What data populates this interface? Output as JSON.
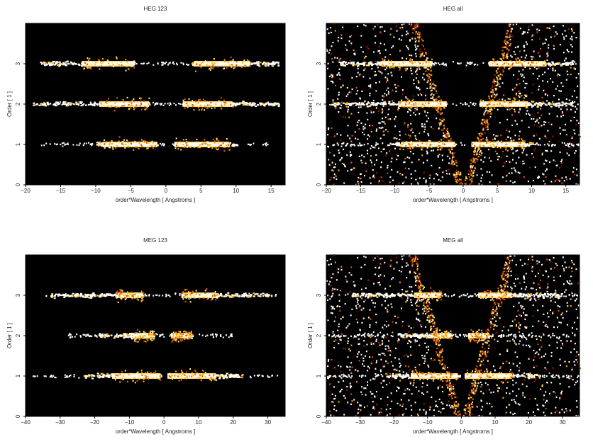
{
  "chart_data": [
    {
      "type": "heatmap",
      "title": "HEG 123",
      "xlabel": "order*Wavelength [ Angstroms ]",
      "ylabel": "Order [ 1 ]",
      "xlim": [
        -20,
        17
      ],
      "ylim": [
        0,
        4
      ],
      "xticks": [
        -20,
        -15,
        -10,
        -5,
        0,
        5,
        10,
        15
      ],
      "yticks": [
        0,
        1,
        2,
        3
      ],
      "background": "#000000",
      "colormap": [
        "#3a0000",
        "#a01800",
        "#e05a00",
        "#ffb000",
        "#ffe890",
        "#ffffff"
      ],
      "bands": [
        {
          "order": 1,
          "neg_range": [
            -10,
            -1.2
          ],
          "pos_range": [
            1.2,
            10
          ],
          "core_neg": [
            -9,
            -1.2
          ],
          "core_pos": [
            1.2,
            9
          ],
          "sparse_range": [
            -18,
            15
          ]
        },
        {
          "order": 2,
          "neg_range": [
            -19,
            -2.4
          ],
          "pos_range": [
            2.4,
            16
          ],
          "core_neg": [
            -9.5,
            -2.4
          ],
          "core_pos": [
            2.4,
            9.5
          ],
          "sparse_range": [
            -19,
            16
          ]
        },
        {
          "order": 3,
          "neg_range": [
            -18,
            -4.5
          ],
          "pos_range": [
            3.6,
            16
          ],
          "core_neg": [
            -12,
            -4.5
          ],
          "core_pos": [
            4,
            12
          ],
          "sparse_range": [
            -18,
            16
          ]
        }
      ],
      "background_fill": "none"
    },
    {
      "type": "heatmap",
      "title": "HEG all",
      "xlabel": "order*Wavelength [ Angstroms ]",
      "ylabel": "Order [ 1 ]",
      "xlim": [
        -20,
        17
      ],
      "ylim": [
        0,
        4
      ],
      "xticks": [
        -20,
        -15,
        -10,
        -5,
        0,
        5,
        10,
        15
      ],
      "yticks": [
        0,
        1,
        2,
        3
      ],
      "background": "#000000",
      "colormap": [
        "#3a0000",
        "#a01800",
        "#e05a00",
        "#ffb000",
        "#ffe890",
        "#ffffff"
      ],
      "bands": [
        {
          "order": 1,
          "neg_range": [
            -10,
            -1.2
          ],
          "pos_range": [
            1.2,
            10
          ],
          "core_neg": [
            -9,
            -1.2
          ],
          "core_pos": [
            1.2,
            9
          ],
          "sparse_range": [
            -20,
            17
          ]
        },
        {
          "order": 2,
          "neg_range": [
            -19,
            -2.4
          ],
          "pos_range": [
            2.4,
            16
          ],
          "core_neg": [
            -9.5,
            -2.4
          ],
          "core_pos": [
            2.4,
            9.5
          ],
          "sparse_range": [
            -20,
            17
          ]
        },
        {
          "order": 3,
          "neg_range": [
            -18,
            -4.5
          ],
          "pos_range": [
            3.6,
            16
          ],
          "core_neg": [
            -12,
            -4.5
          ],
          "core_pos": [
            4,
            12
          ],
          "sparse_range": [
            -20,
            17
          ]
        }
      ],
      "background_fill": "wedge"
    },
    {
      "type": "heatmap",
      "title": "MEG 123",
      "xlabel": "order*Wavelength [ Angstroms ]",
      "ylabel": "Order [ 1 ]",
      "xlim": [
        -40,
        35
      ],
      "ylim": [
        0,
        4
      ],
      "xticks": [
        -40,
        -30,
        -20,
        -10,
        0,
        10,
        20,
        30
      ],
      "yticks": [
        0,
        1,
        2,
        3
      ],
      "background": "#000000",
      "colormap": [
        "#3a0000",
        "#a01800",
        "#e05a00",
        "#ffb000",
        "#ffe890",
        "#ffffff"
      ],
      "bands": [
        {
          "order": 1,
          "neg_range": [
            -23,
            -1
          ],
          "pos_range": [
            1,
            23
          ],
          "core_neg": [
            -15,
            -1
          ],
          "core_pos": [
            1,
            15
          ],
          "sparse_range": [
            -38,
            33
          ]
        },
        {
          "order": 2,
          "neg_range": [
            -19,
            -3
          ],
          "pos_range": [
            2,
            8
          ],
          "core_neg": [
            -9,
            -3
          ],
          "core_pos": [
            2,
            8
          ],
          "sparse_range": [
            -28,
            20
          ]
        },
        {
          "order": 3,
          "neg_range": [
            -33,
            -6
          ],
          "pos_range": [
            5,
            30
          ],
          "core_neg": [
            -14,
            -6
          ],
          "core_pos": [
            5,
            15
          ],
          "sparse_range": [
            -36,
            33
          ]
        }
      ],
      "background_fill": "none"
    },
    {
      "type": "heatmap",
      "title": "MEG all",
      "xlabel": "order*Wavelength [ Angstroms ]",
      "ylabel": "Order [ 1 ]",
      "xlim": [
        -40,
        35
      ],
      "ylim": [
        0,
        4
      ],
      "xticks": [
        -40,
        -30,
        -20,
        -10,
        0,
        10,
        20,
        30
      ],
      "yticks": [
        0,
        1,
        2,
        3
      ],
      "background": "#000000",
      "colormap": [
        "#3a0000",
        "#a01800",
        "#e05a00",
        "#ffb000",
        "#ffe890",
        "#ffffff"
      ],
      "bands": [
        {
          "order": 1,
          "neg_range": [
            -23,
            -1
          ],
          "pos_range": [
            1,
            23
          ],
          "core_neg": [
            -15,
            -1
          ],
          "core_pos": [
            1,
            15
          ],
          "sparse_range": [
            -40,
            35
          ]
        },
        {
          "order": 2,
          "neg_range": [
            -19,
            -3
          ],
          "pos_range": [
            2,
            8
          ],
          "core_neg": [
            -9,
            -3
          ],
          "core_pos": [
            2,
            8
          ],
          "sparse_range": [
            -40,
            35
          ]
        },
        {
          "order": 3,
          "neg_range": [
            -33,
            -6
          ],
          "pos_range": [
            5,
            30
          ],
          "core_neg": [
            -14,
            -6
          ],
          "core_pos": [
            5,
            15
          ],
          "sparse_range": [
            -40,
            35
          ]
        }
      ],
      "background_fill": "wedge"
    }
  ]
}
